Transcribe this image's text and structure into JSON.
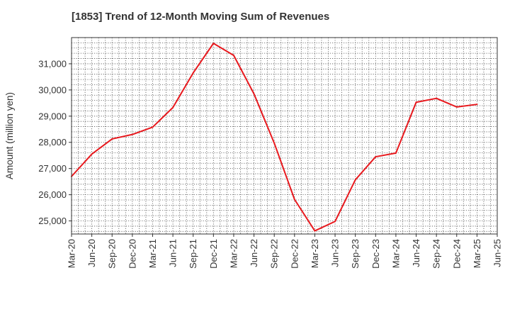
{
  "colors": {
    "series": "#e8191e",
    "grid": "#555555",
    "frame": "#333333",
    "text": "#333333"
  },
  "chart_data": {
    "type": "line",
    "title": "[1853]  Trend of 12-Month Moving Sum of Revenues",
    "ylabel": "Amount (million yen)",
    "xlabel": "",
    "grid": true,
    "ylim": [
      24500,
      32000
    ],
    "yticks": [
      25000,
      26000,
      27000,
      28000,
      29000,
      30000,
      31000
    ],
    "ytick_labels": [
      "25,000",
      "26,000",
      "27,000",
      "28,000",
      "29,000",
      "30,000",
      "31,000"
    ],
    "xtick_labels": [
      "Mar-20",
      "Jun-20",
      "Sep-20",
      "Dec-20",
      "Mar-21",
      "Jun-21",
      "Sep-21",
      "Dec-21",
      "Mar-22",
      "Jun-22",
      "Sep-22",
      "Dec-22",
      "Mar-23",
      "Jun-23",
      "Sep-23",
      "Dec-23",
      "Mar-24",
      "Jun-24",
      "Sep-24",
      "Dec-24",
      "Mar-25",
      "Jun-25"
    ],
    "series": [
      {
        "x": [
          "Mar-20",
          "Jun-20",
          "Sep-20",
          "Dec-20",
          "Mar-21",
          "Jun-21",
          "Sep-21",
          "Dec-21",
          "Mar-22",
          "Jun-22",
          "Sep-22",
          "Dec-22",
          "Mar-23",
          "Jun-23",
          "Sep-23",
          "Dec-23",
          "Mar-24",
          "Jun-24",
          "Sep-24",
          "Dec-24",
          "Mar-25"
        ],
        "values": [
          26700,
          27550,
          28130,
          28300,
          28580,
          29330,
          30650,
          31780,
          31320,
          29850,
          27970,
          25820,
          24620,
          24980,
          26570,
          27450,
          27590,
          29530,
          29680,
          29350,
          29450
        ]
      }
    ]
  }
}
